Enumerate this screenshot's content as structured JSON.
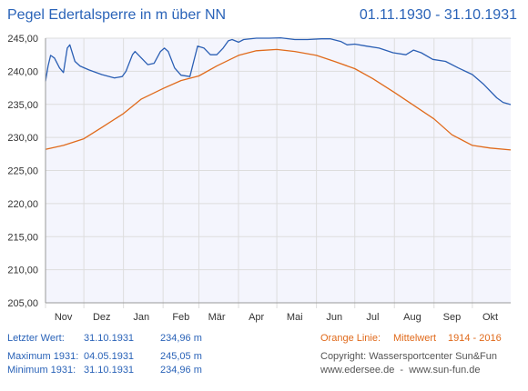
{
  "chart_data": {
    "type": "line",
    "title": "Pegel Edertalsperre in m über NN",
    "date_range": "01.11.1930 - 31.10.1931",
    "ylim": [
      205,
      245
    ],
    "y_ticks": [
      "205,00",
      "210,00",
      "215,00",
      "220,00",
      "225,00",
      "230,00",
      "235,00",
      "240,00",
      "245,00"
    ],
    "x_ticks": [
      "Nov",
      "Dez",
      "Jan",
      "Feb",
      "Mär",
      "Apr",
      "Mai",
      "Jun",
      "Jul",
      "Aug",
      "Sep",
      "Okt"
    ],
    "x_tick_dates": [
      "1930-11-15",
      "1930-12-15",
      "1931-01-15",
      "1931-02-15",
      "1931-03-15",
      "1931-04-15",
      "1931-05-15",
      "1931-06-15",
      "1931-07-15",
      "1931-08-15",
      "1931-09-15",
      "1931-10-15"
    ],
    "xlim": [
      "1930-11-01",
      "1931-10-31"
    ],
    "grid": true,
    "series": [
      {
        "color": "#2b5fb4",
        "points": [
          [
            "1930-11-01",
            238.5
          ],
          [
            "1930-11-03",
            240.8
          ],
          [
            "1930-11-05",
            242.4
          ],
          [
            "1930-11-08",
            242.0
          ],
          [
            "1930-11-12",
            240.5
          ],
          [
            "1930-11-15",
            239.8
          ],
          [
            "1930-11-18",
            243.5
          ],
          [
            "1930-11-20",
            244.0
          ],
          [
            "1930-11-24",
            241.5
          ],
          [
            "1930-11-28",
            240.8
          ],
          [
            "1930-12-05",
            240.2
          ],
          [
            "1930-12-15",
            239.5
          ],
          [
            "1930-12-25",
            239.0
          ],
          [
            "1930-12-31",
            239.2
          ],
          [
            "1931-01-03",
            240.0
          ],
          [
            "1931-01-08",
            242.5
          ],
          [
            "1931-01-10",
            243.0
          ],
          [
            "1931-01-15",
            242.0
          ],
          [
            "1931-01-20",
            241.0
          ],
          [
            "1931-01-25",
            241.2
          ],
          [
            "1931-01-30",
            243.0
          ],
          [
            "1931-02-02",
            243.5
          ],
          [
            "1931-02-05",
            243.0
          ],
          [
            "1931-02-10",
            240.5
          ],
          [
            "1931-02-15",
            239.4
          ],
          [
            "1931-02-22",
            239.2
          ],
          [
            "1931-02-25",
            241.5
          ],
          [
            "1931-02-28",
            243.8
          ],
          [
            "1931-03-05",
            243.5
          ],
          [
            "1931-03-10",
            242.5
          ],
          [
            "1931-03-15",
            242.5
          ],
          [
            "1931-03-20",
            243.5
          ],
          [
            "1931-03-24",
            244.6
          ],
          [
            "1931-03-27",
            244.8
          ],
          [
            "1931-04-01",
            244.4
          ],
          [
            "1931-04-05",
            244.8
          ],
          [
            "1931-04-15",
            245.0
          ],
          [
            "1931-04-25",
            245.0
          ],
          [
            "1931-05-04",
            245.05
          ],
          [
            "1931-05-15",
            244.8
          ],
          [
            "1931-05-25",
            244.8
          ],
          [
            "1931-06-05",
            244.9
          ],
          [
            "1931-06-12",
            244.9
          ],
          [
            "1931-06-20",
            244.5
          ],
          [
            "1931-06-25",
            244.0
          ],
          [
            "1931-07-01",
            244.1
          ],
          [
            "1931-07-10",
            243.8
          ],
          [
            "1931-07-20",
            243.5
          ],
          [
            "1931-07-31",
            242.8
          ],
          [
            "1931-08-10",
            242.5
          ],
          [
            "1931-08-16",
            243.2
          ],
          [
            "1931-08-22",
            242.8
          ],
          [
            "1931-08-31",
            241.8
          ],
          [
            "1931-09-10",
            241.5
          ],
          [
            "1931-09-20",
            240.5
          ],
          [
            "1931-10-01",
            239.5
          ],
          [
            "1931-10-10",
            238.0
          ],
          [
            "1931-10-20",
            236.0
          ],
          [
            "1931-10-25",
            235.3
          ],
          [
            "1931-10-31",
            234.96
          ]
        ]
      },
      {
        "name": "Mittelwert",
        "color": "#e06a1b",
        "points": [
          [
            "1930-11-01",
            228.2
          ],
          [
            "1930-11-15",
            228.8
          ],
          [
            "1930-12-01",
            229.8
          ],
          [
            "1930-12-15",
            231.5
          ],
          [
            "1931-01-01",
            233.6
          ],
          [
            "1931-01-15",
            235.8
          ],
          [
            "1931-02-01",
            237.4
          ],
          [
            "1931-02-15",
            238.6
          ],
          [
            "1931-03-01",
            239.3
          ],
          [
            "1931-03-15",
            240.8
          ],
          [
            "1931-04-01",
            242.4
          ],
          [
            "1931-04-15",
            243.1
          ],
          [
            "1931-05-01",
            243.3
          ],
          [
            "1931-05-15",
            243.0
          ],
          [
            "1931-06-01",
            242.4
          ],
          [
            "1931-06-15",
            241.5
          ],
          [
            "1931-07-01",
            240.4
          ],
          [
            "1931-07-15",
            238.9
          ],
          [
            "1931-08-01",
            236.8
          ],
          [
            "1931-08-15",
            235.0
          ],
          [
            "1931-09-01",
            232.8
          ],
          [
            "1931-09-15",
            230.4
          ],
          [
            "1931-10-01",
            228.8
          ],
          [
            "1931-10-15",
            228.4
          ],
          [
            "1931-10-31",
            228.1
          ]
        ]
      }
    ]
  },
  "info": {
    "last_label": "Letzter Wert:",
    "last_date": "31.10.1931",
    "last_value": "234,96 m",
    "max_label": "Maximum 1931:",
    "max_date": "04.05.1931",
    "max_value": "245,05 m",
    "min_label": "Minimum 1931:",
    "min_date": "31.10.1931",
    "min_value": "234,96 m",
    "orange_label": "Orange Linie:",
    "orange_desc": "Mittelwert",
    "orange_years": "1914 - 2016",
    "copyright": "Copyright: Wassersportcenter Sun&Fun",
    "sites": "www.edersee.de  -  www.sun-fun.de"
  },
  "colors": {
    "plot_bg": "#f4f5fd",
    "grid": "#dddddd",
    "axis_text": "#333333",
    "accent": "#2a63b8"
  }
}
